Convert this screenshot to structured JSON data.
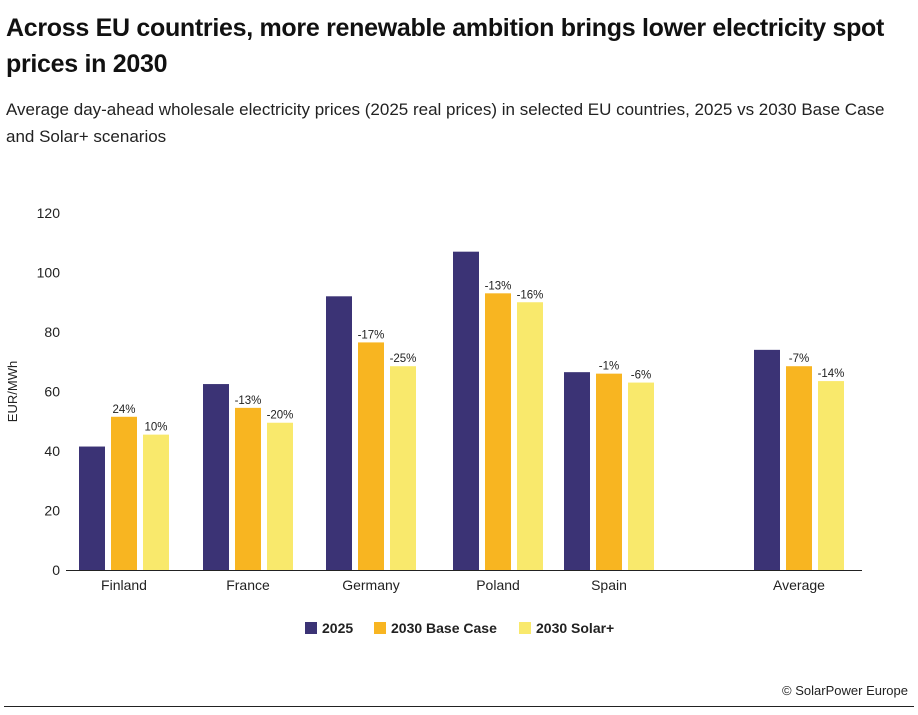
{
  "title": "Across EU countries, more renewable ambition brings lower electricity spot prices in 2030",
  "subtitle": "Average day-ahead wholesale electricity prices (2025 real prices) in selected EU countries, 2025 vs 2030 Base Case and Solar+ scenarios",
  "footer": {
    "copyright_symbol": "©",
    "source": "SolarPower Europe"
  },
  "colors": {
    "2025": "#3b3375",
    "base_case": "#f8b521",
    "solar_plus": "#f9e96c"
  },
  "chart_data": {
    "type": "bar",
    "categories": [
      "Finland",
      "France",
      "Germany",
      "Poland",
      "Spain",
      "Average"
    ],
    "series": [
      {
        "name": "2025",
        "values": [
          41.5,
          62.5,
          92,
          107,
          66.5,
          74
        ]
      },
      {
        "name": "2030 Base Case",
        "values": [
          51.5,
          54.5,
          76.5,
          93,
          66,
          68.5
        ]
      },
      {
        "name": "2030 Solar+",
        "values": [
          45.5,
          49.5,
          68.5,
          90,
          63,
          63.5
        ]
      }
    ],
    "data_labels": {
      "2030 Base Case": [
        "24%",
        "-13%",
        "-17%",
        "-13%",
        "-1%",
        "-7%"
      ],
      "2030 Solar+": [
        "10%",
        "-20%",
        "-25%",
        "-16%",
        "-6%",
        "-14%"
      ]
    },
    "ylabel": "EUR/MWh",
    "xlabel": "",
    "ylim": [
      0,
      120
    ],
    "yticks": [
      0,
      20,
      40,
      60,
      80,
      100,
      120
    ],
    "grid": false,
    "legend_position": "bottom-center"
  }
}
